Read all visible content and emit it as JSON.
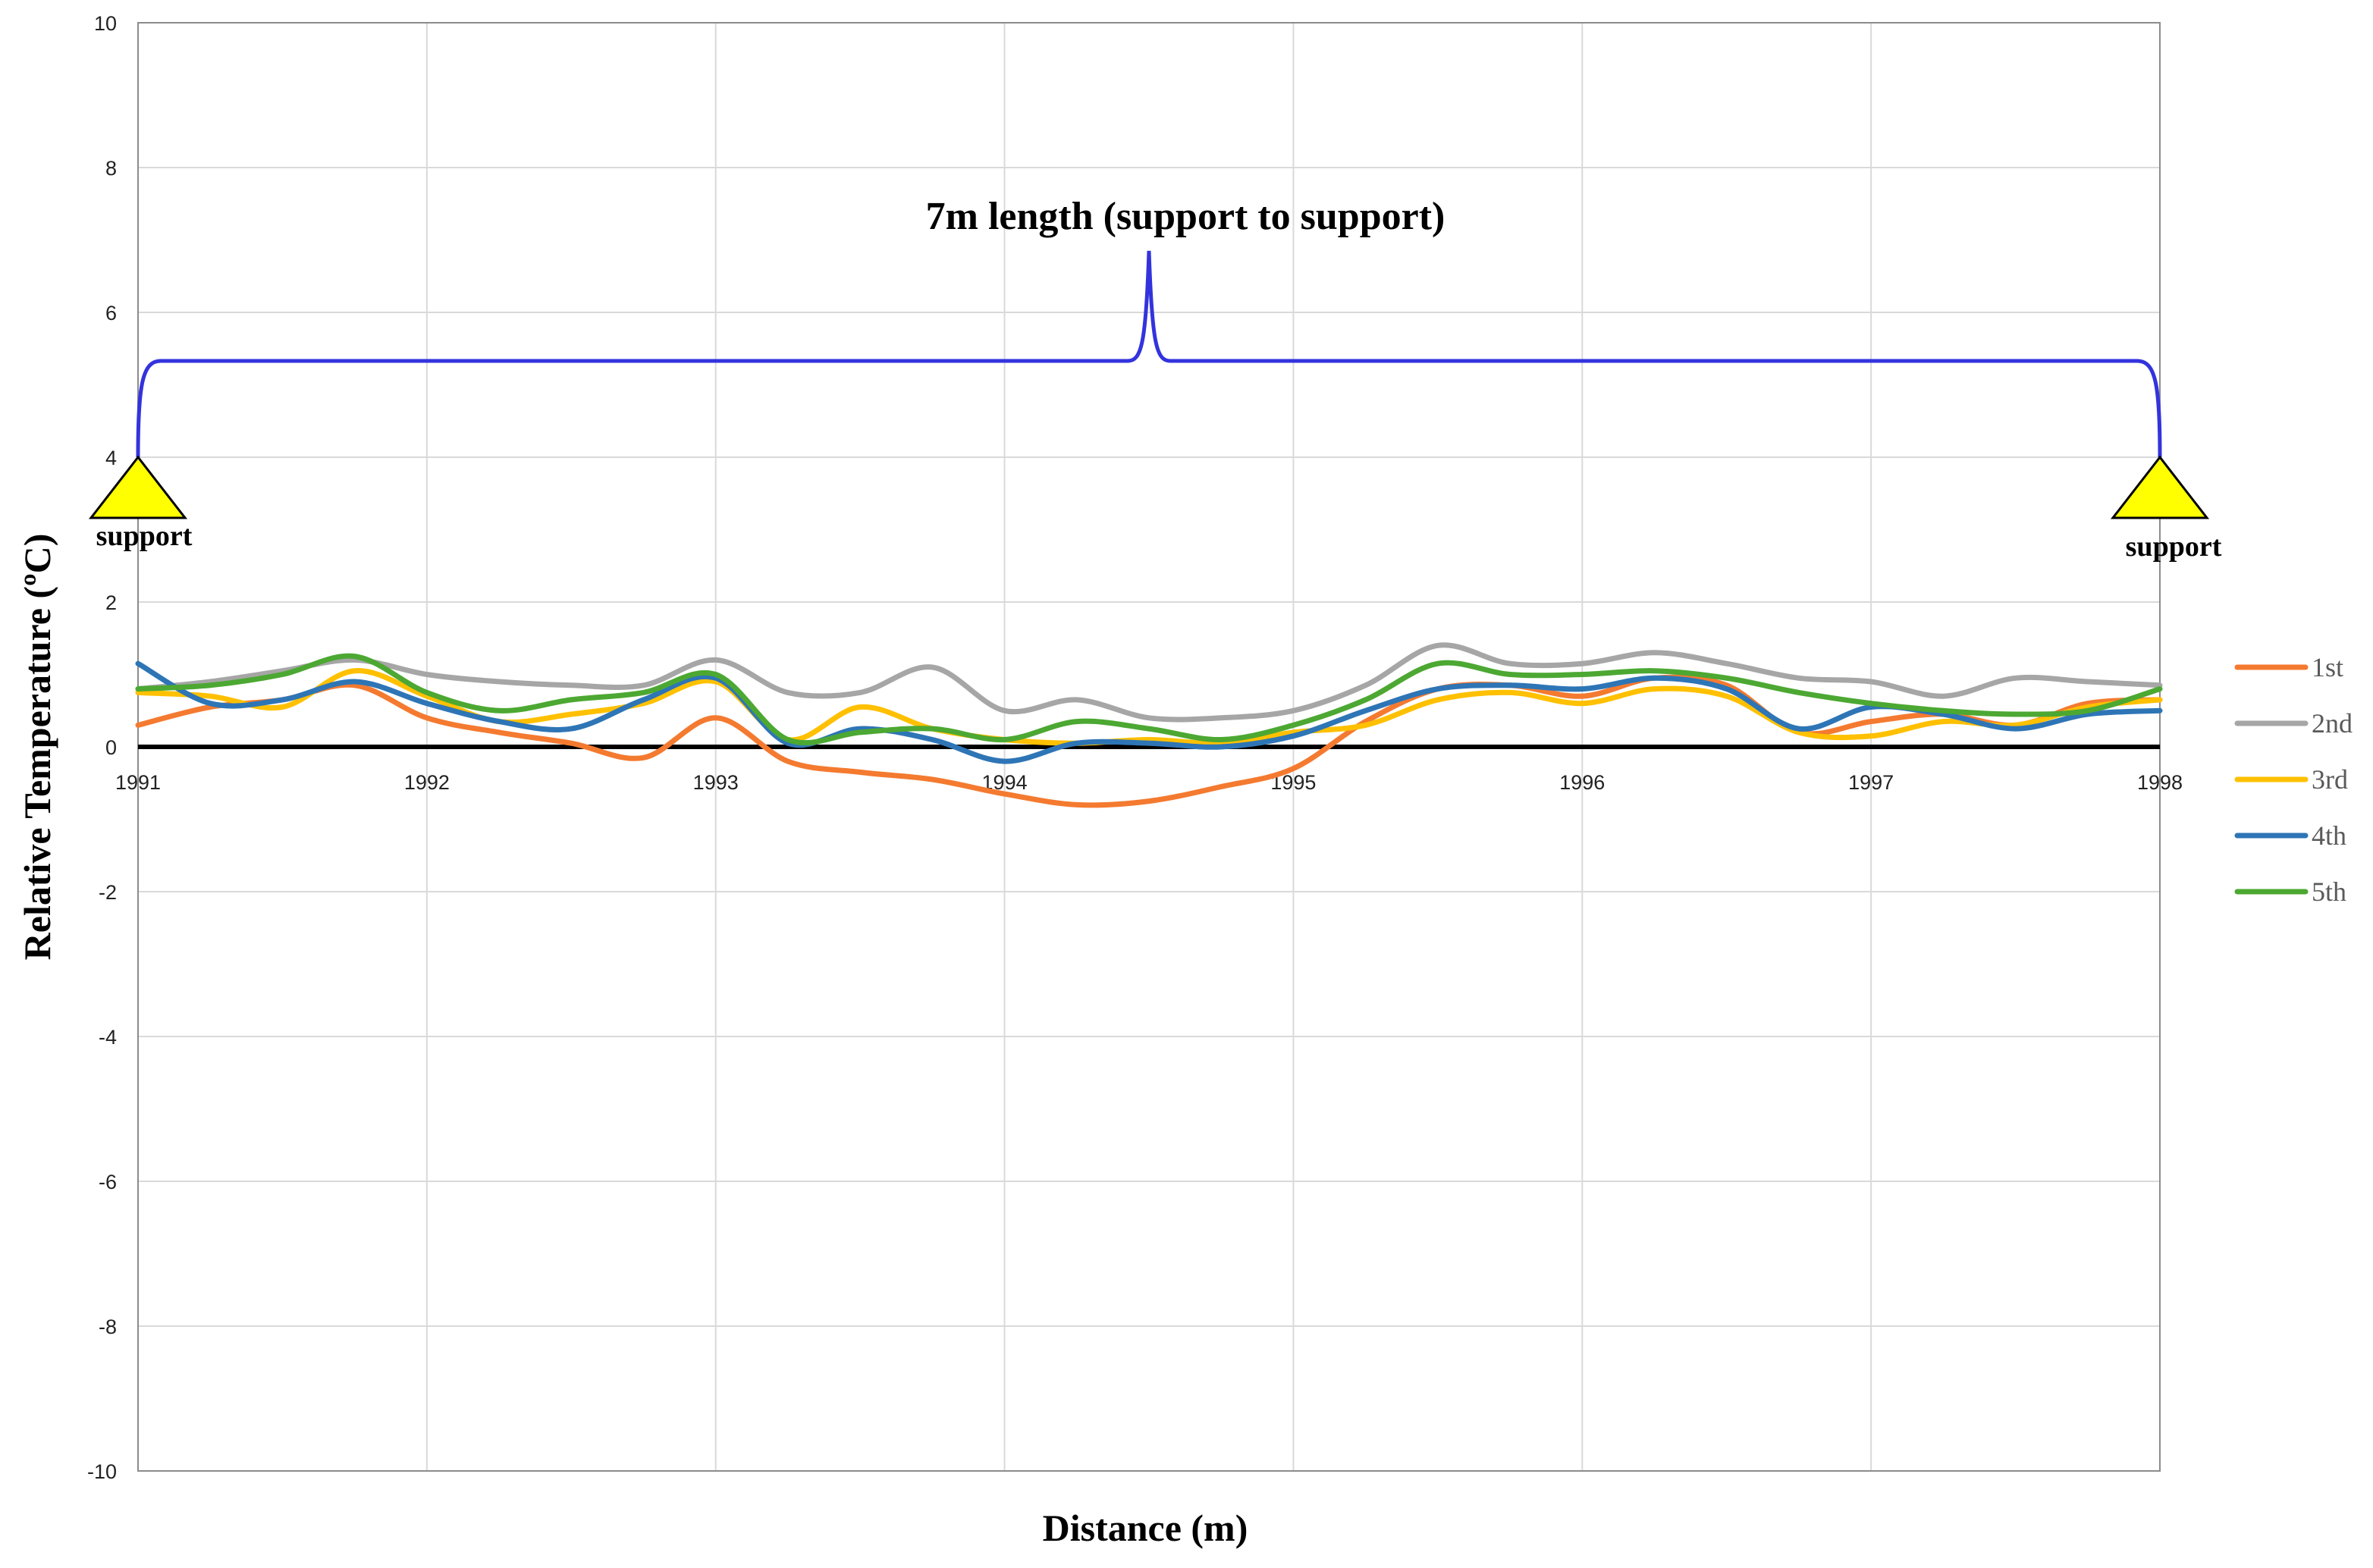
{
  "chart_data": {
    "type": "line",
    "title": "",
    "xlabel": "Distance (m)",
    "ylabel": "Relative Temperature  (ºC)",
    "xlim": [
      1991,
      1998
    ],
    "ylim": [
      -10,
      10
    ],
    "x_ticks": [
      1991,
      1992,
      1993,
      1994,
      1995,
      1996,
      1997,
      1998
    ],
    "y_ticks": [
      -10,
      -8,
      -6,
      -4,
      -2,
      0,
      2,
      4,
      6,
      8,
      10
    ],
    "grid": true,
    "legend_position": "right",
    "annotation": {
      "text": "7m length (support to support)",
      "color": "#3333dd",
      "span": [
        1991,
        1998
      ]
    },
    "supports": [
      {
        "label": "support",
        "x": 1991,
        "color": "#ffff00"
      },
      {
        "label": "support",
        "x": 1998,
        "color": "#ffff00"
      }
    ],
    "x": [
      1991,
      1991.25,
      1991.5,
      1991.75,
      1992,
      1992.25,
      1992.5,
      1992.75,
      1993,
      1993.25,
      1993.5,
      1993.75,
      1994,
      1994.25,
      1994.5,
      1994.75,
      1995,
      1995.25,
      1995.5,
      1995.75,
      1996,
      1996.25,
      1996.5,
      1996.75,
      1997,
      1997.25,
      1997.5,
      1997.75,
      1998
    ],
    "series": [
      {
        "name": "1st",
        "color": "#f47a30",
        "values": [
          0.3,
          0.55,
          0.65,
          0.85,
          0.4,
          0.2,
          0.05,
          -0.15,
          0.4,
          -0.2,
          -0.35,
          -0.45,
          -0.65,
          -0.8,
          -0.75,
          -0.55,
          -0.3,
          0.35,
          0.8,
          0.85,
          0.7,
          0.95,
          0.85,
          0.2,
          0.35,
          0.45,
          0.3,
          0.6,
          0.65
        ]
      },
      {
        "name": "2nd",
        "color": "#a6a6a6",
        "values": [
          0.8,
          0.9,
          1.05,
          1.2,
          1.0,
          0.9,
          0.85,
          0.85,
          1.2,
          0.75,
          0.75,
          1.1,
          0.5,
          0.65,
          0.4,
          0.4,
          0.5,
          0.85,
          1.4,
          1.15,
          1.15,
          1.3,
          1.15,
          0.95,
          0.9,
          0.7,
          0.95,
          0.9,
          0.85
        ]
      },
      {
        "name": "3rd",
        "color": "#ffc000",
        "values": [
          0.75,
          0.7,
          0.55,
          1.05,
          0.7,
          0.35,
          0.45,
          0.6,
          0.9,
          0.1,
          0.55,
          0.25,
          0.1,
          0.05,
          0.1,
          0.05,
          0.2,
          0.3,
          0.65,
          0.75,
          0.6,
          0.8,
          0.7,
          0.2,
          0.15,
          0.35,
          0.3,
          0.55,
          0.65
        ]
      },
      {
        "name": "4th",
        "color": "#2e75b6",
        "values": [
          1.15,
          0.6,
          0.65,
          0.9,
          0.6,
          0.35,
          0.25,
          0.65,
          0.95,
          0.05,
          0.25,
          0.1,
          -0.2,
          0.05,
          0.05,
          0.0,
          0.15,
          0.5,
          0.8,
          0.85,
          0.8,
          0.95,
          0.8,
          0.25,
          0.55,
          0.45,
          0.25,
          0.45,
          0.5
        ]
      },
      {
        "name": "5th",
        "color": "#4ca832",
        "values": [
          0.8,
          0.85,
          1.0,
          1.25,
          0.75,
          0.5,
          0.65,
          0.75,
          1.0,
          0.1,
          0.2,
          0.25,
          0.1,
          0.35,
          0.25,
          0.1,
          0.3,
          0.65,
          1.15,
          1.0,
          1.0,
          1.05,
          0.95,
          0.75,
          0.6,
          0.5,
          0.45,
          0.5,
          0.8
        ]
      }
    ]
  }
}
